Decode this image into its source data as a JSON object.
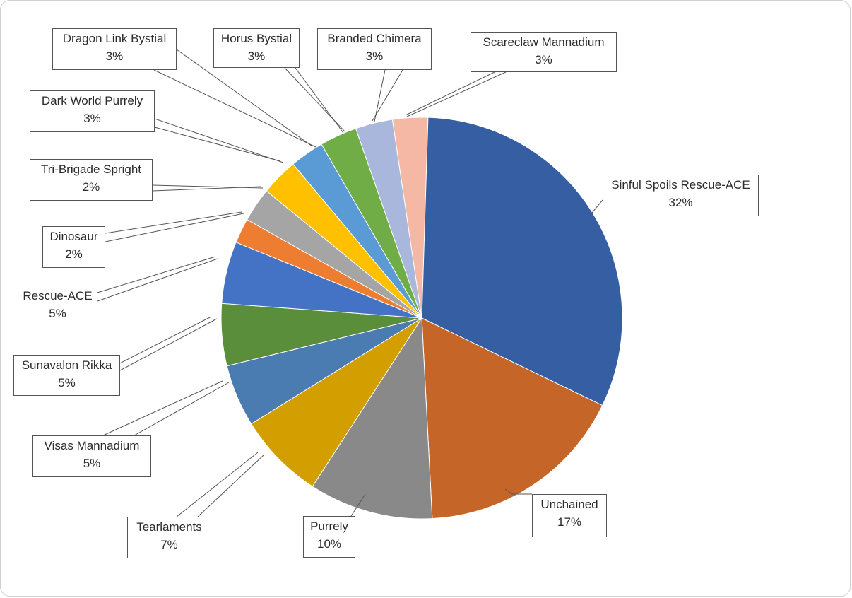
{
  "chart_data": {
    "type": "pie",
    "slices": [
      {
        "name": "Sinful Spoils Rescue-ACE",
        "value": 32,
        "label": "32%",
        "color": "#365ea3"
      },
      {
        "name": "Unchained",
        "value": 17,
        "label": "17%",
        "color": "#c56528"
      },
      {
        "name": "Purrely",
        "value": 10,
        "label": "10%",
        "color": "#898989"
      },
      {
        "name": "Tearlaments",
        "value": 7,
        "label": "7%",
        "color": "#d29e00"
      },
      {
        "name": "Visas Mannadium",
        "value": 5,
        "label": "5%",
        "color": "#4a7cb1"
      },
      {
        "name": "Sunavalon Rikka",
        "value": 5,
        "label": "5%",
        "color": "#5a8e3a"
      },
      {
        "name": "Rescue-ACE",
        "value": 5,
        "label": "5%",
        "color": "#4472c4"
      },
      {
        "name": "Dinosaur",
        "value": 2,
        "label": "2%",
        "color": "#ed7d31"
      },
      {
        "name": "Tri-Brigade Spright",
        "value": 2,
        "label": "2%",
        "color": "#a5a5a5"
      },
      {
        "name": "Dark World Purrely",
        "value": 3,
        "label": "3%",
        "color": "#ffc000"
      },
      {
        "name": "Dragon Link Bystial",
        "value": 3,
        "label": "3%",
        "color": "#5b9bd5"
      },
      {
        "name": "Horus Bystial",
        "value": 3,
        "label": "3%",
        "color": "#70ad47"
      },
      {
        "name": "Branded Chimera",
        "value": 3,
        "label": "3%",
        "color": "#a9b7dc"
      },
      {
        "name": "Scareclaw Mannadium",
        "value": 3,
        "label": "3%",
        "color": "#f4b8a4"
      }
    ],
    "title": "",
    "legend": "none",
    "data_labels": "callout-name-and-percent"
  }
}
